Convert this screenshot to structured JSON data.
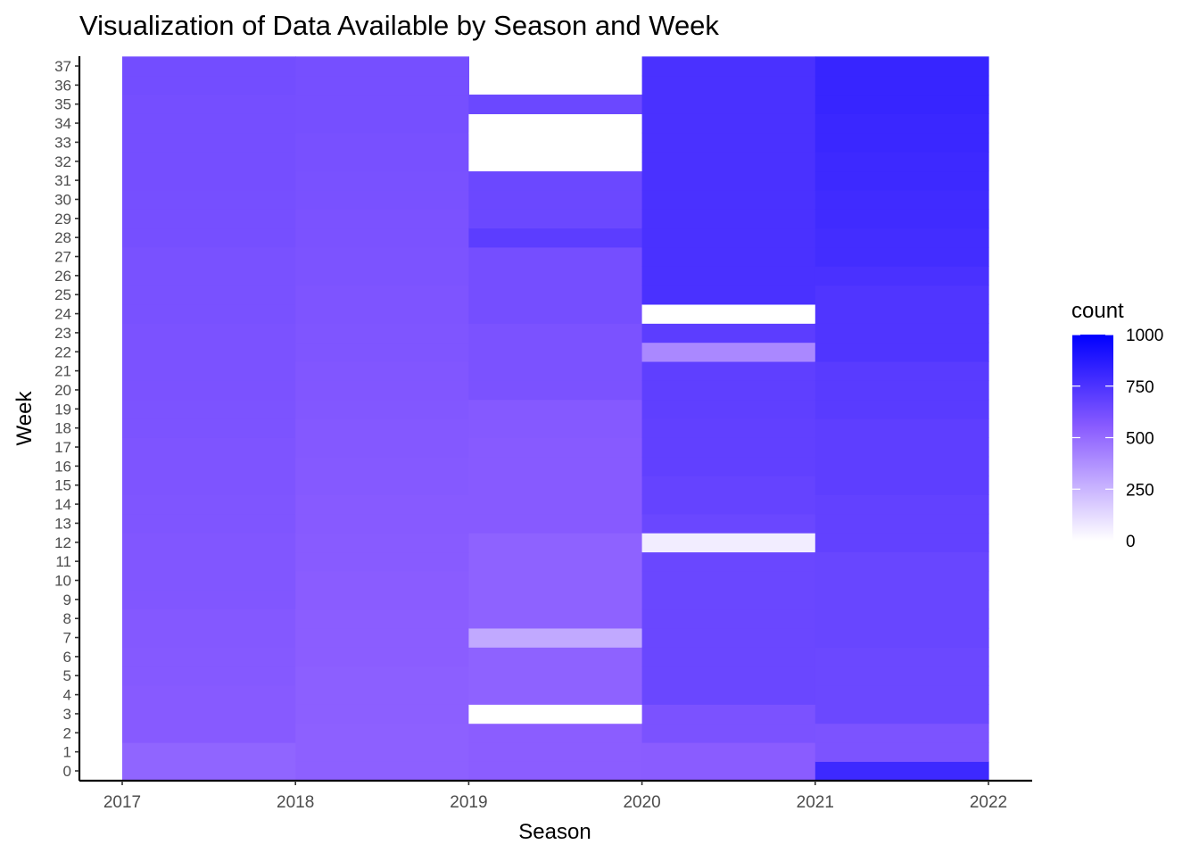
{
  "chart_data": {
    "type": "heatmap",
    "title": "Visualization of Data Available by Season and Week",
    "xlabel": "Season",
    "ylabel": "Week",
    "x_ticks": [
      "2017",
      "2018",
      "2019",
      "2020",
      "2021",
      "2022"
    ],
    "y_ticks": [
      "0",
      "1",
      "2",
      "3",
      "4",
      "5",
      "6",
      "7",
      "8",
      "9",
      "10",
      "11",
      "12",
      "13",
      "14",
      "15",
      "16",
      "17",
      "18",
      "19",
      "20",
      "21",
      "22",
      "23",
      "24",
      "25",
      "26",
      "27",
      "28",
      "29",
      "30",
      "31",
      "32",
      "33",
      "34",
      "35",
      "36",
      "37"
    ],
    "xlim": [
      2017,
      2022
    ],
    "ylim": [
      0,
      37
    ],
    "grid": false,
    "legend": {
      "title": "count",
      "position": "right",
      "ticks": [
        0,
        250,
        500,
        750,
        1000
      ],
      "tick_labels": [
        "0",
        "250",
        "500",
        "750",
        "1000"
      ]
    },
    "color_low": "#ffffff",
    "color_high": "#0000ff",
    "color_mid": "#8a5cff",
    "seasons": [
      "2017",
      "2018",
      "2019",
      "2020",
      "2021"
    ],
    "weeks": [
      0,
      1,
      2,
      3,
      4,
      5,
      6,
      7,
      8,
      9,
      10,
      11,
      12,
      13,
      14,
      15,
      16,
      17,
      18,
      19,
      20,
      21,
      22,
      23,
      24,
      25,
      26,
      27,
      28,
      29,
      30,
      31,
      32,
      33,
      34,
      35,
      36,
      37
    ],
    "counts": [
      [
        520,
        520,
        560,
        560,
        560,
        565,
        565,
        570,
        570,
        580,
        580,
        580,
        580,
        585,
        585,
        590,
        590,
        590,
        595,
        595,
        600,
        600,
        600,
        600,
        605,
        605,
        605,
        605,
        615,
        615,
        615,
        620,
        620,
        620,
        620,
        620,
        625,
        625
      ],
      [
        535,
        535,
        535,
        540,
        540,
        540,
        545,
        545,
        545,
        550,
        550,
        555,
        555,
        560,
        560,
        565,
        565,
        570,
        570,
        575,
        580,
        580,
        585,
        585,
        590,
        590,
        595,
        595,
        600,
        600,
        605,
        605,
        610,
        610,
        615,
        615,
        615,
        615
      ],
      [
        545,
        545,
        545,
        0,
        530,
        530,
        530,
        290,
        530,
        530,
        530,
        530,
        530,
        560,
        560,
        560,
        560,
        560,
        565,
        565,
        600,
        600,
        600,
        600,
        620,
        620,
        620,
        620,
        700,
        650,
        650,
        650,
        0,
        0,
        0,
        650,
        null,
        null
      ],
      [
        550,
        550,
        600,
        600,
        655,
        655,
        655,
        655,
        655,
        655,
        655,
        655,
        60,
        655,
        670,
        670,
        685,
        685,
        685,
        690,
        690,
        690,
        400,
        700,
        0,
        760,
        760,
        760,
        760,
        760,
        760,
        760,
        760,
        760,
        760,
        760,
        760,
        760
      ],
      [
        800,
        595,
        595,
        650,
        650,
        650,
        650,
        660,
        660,
        660,
        660,
        660,
        680,
        680,
        680,
        695,
        695,
        695,
        695,
        710,
        710,
        710,
        740,
        740,
        740,
        740,
        760,
        780,
        780,
        790,
        790,
        800,
        800,
        810,
        810,
        820,
        820,
        820
      ]
    ]
  }
}
